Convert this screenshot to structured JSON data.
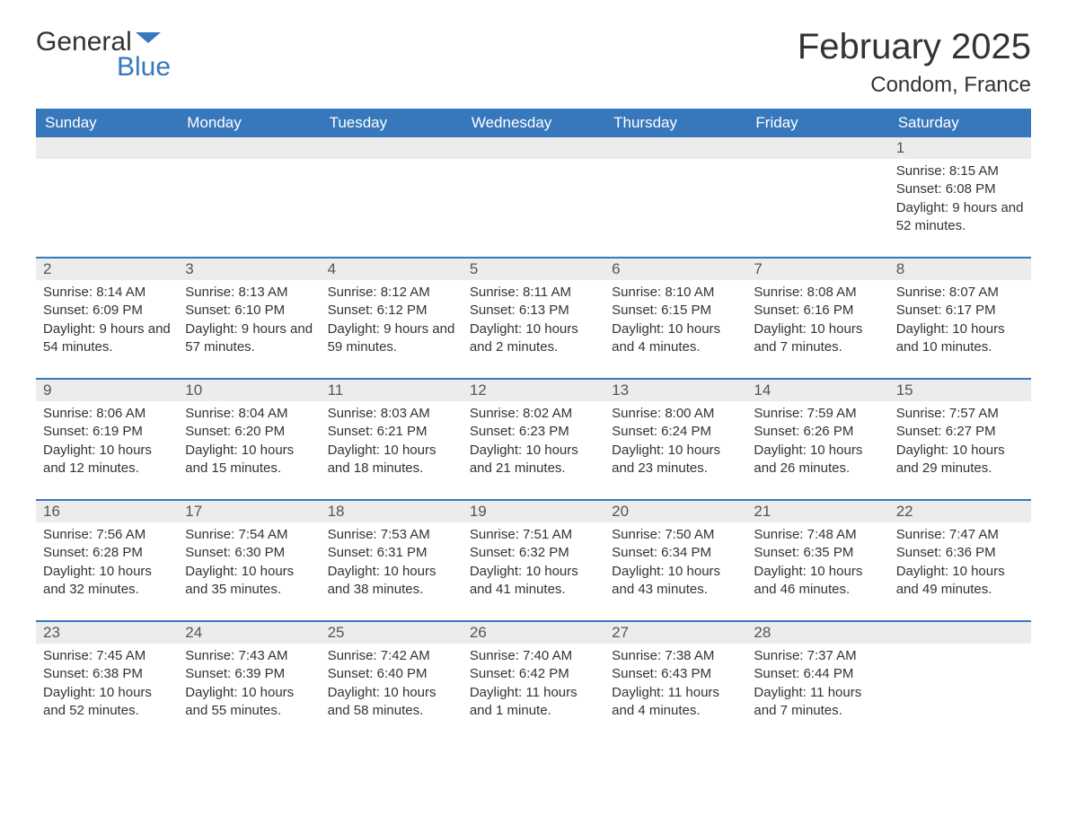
{
  "brand": {
    "part1": "General",
    "part2": "Blue",
    "logo_color": "#3778bd"
  },
  "title": "February 2025",
  "location": "Condom, France",
  "colors": {
    "header_bg": "#3778bd",
    "header_fg": "#ffffff",
    "daybar_bg": "#ececec",
    "text": "#333333",
    "week_border": "#3778bd"
  },
  "weekdays": [
    "Sunday",
    "Monday",
    "Tuesday",
    "Wednesday",
    "Thursday",
    "Friday",
    "Saturday"
  ],
  "sunrise_prefix": "Sunrise: ",
  "sunset_prefix": "Sunset: ",
  "daylight_prefix": "Daylight: ",
  "weeks": [
    [
      null,
      null,
      null,
      null,
      null,
      null,
      {
        "day": "1",
        "sunrise": "8:15 AM",
        "sunset": "6:08 PM",
        "daylight": "9 hours and 52 minutes."
      }
    ],
    [
      {
        "day": "2",
        "sunrise": "8:14 AM",
        "sunset": "6:09 PM",
        "daylight": "9 hours and 54 minutes."
      },
      {
        "day": "3",
        "sunrise": "8:13 AM",
        "sunset": "6:10 PM",
        "daylight": "9 hours and 57 minutes."
      },
      {
        "day": "4",
        "sunrise": "8:12 AM",
        "sunset": "6:12 PM",
        "daylight": "9 hours and 59 minutes."
      },
      {
        "day": "5",
        "sunrise": "8:11 AM",
        "sunset": "6:13 PM",
        "daylight": "10 hours and 2 minutes."
      },
      {
        "day": "6",
        "sunrise": "8:10 AM",
        "sunset": "6:15 PM",
        "daylight": "10 hours and 4 minutes."
      },
      {
        "day": "7",
        "sunrise": "8:08 AM",
        "sunset": "6:16 PM",
        "daylight": "10 hours and 7 minutes."
      },
      {
        "day": "8",
        "sunrise": "8:07 AM",
        "sunset": "6:17 PM",
        "daylight": "10 hours and 10 minutes."
      }
    ],
    [
      {
        "day": "9",
        "sunrise": "8:06 AM",
        "sunset": "6:19 PM",
        "daylight": "10 hours and 12 minutes."
      },
      {
        "day": "10",
        "sunrise": "8:04 AM",
        "sunset": "6:20 PM",
        "daylight": "10 hours and 15 minutes."
      },
      {
        "day": "11",
        "sunrise": "8:03 AM",
        "sunset": "6:21 PM",
        "daylight": "10 hours and 18 minutes."
      },
      {
        "day": "12",
        "sunrise": "8:02 AM",
        "sunset": "6:23 PM",
        "daylight": "10 hours and 21 minutes."
      },
      {
        "day": "13",
        "sunrise": "8:00 AM",
        "sunset": "6:24 PM",
        "daylight": "10 hours and 23 minutes."
      },
      {
        "day": "14",
        "sunrise": "7:59 AM",
        "sunset": "6:26 PM",
        "daylight": "10 hours and 26 minutes."
      },
      {
        "day": "15",
        "sunrise": "7:57 AM",
        "sunset": "6:27 PM",
        "daylight": "10 hours and 29 minutes."
      }
    ],
    [
      {
        "day": "16",
        "sunrise": "7:56 AM",
        "sunset": "6:28 PM",
        "daylight": "10 hours and 32 minutes."
      },
      {
        "day": "17",
        "sunrise": "7:54 AM",
        "sunset": "6:30 PM",
        "daylight": "10 hours and 35 minutes."
      },
      {
        "day": "18",
        "sunrise": "7:53 AM",
        "sunset": "6:31 PM",
        "daylight": "10 hours and 38 minutes."
      },
      {
        "day": "19",
        "sunrise": "7:51 AM",
        "sunset": "6:32 PM",
        "daylight": "10 hours and 41 minutes."
      },
      {
        "day": "20",
        "sunrise": "7:50 AM",
        "sunset": "6:34 PM",
        "daylight": "10 hours and 43 minutes."
      },
      {
        "day": "21",
        "sunrise": "7:48 AM",
        "sunset": "6:35 PM",
        "daylight": "10 hours and 46 minutes."
      },
      {
        "day": "22",
        "sunrise": "7:47 AM",
        "sunset": "6:36 PM",
        "daylight": "10 hours and 49 minutes."
      }
    ],
    [
      {
        "day": "23",
        "sunrise": "7:45 AM",
        "sunset": "6:38 PM",
        "daylight": "10 hours and 52 minutes."
      },
      {
        "day": "24",
        "sunrise": "7:43 AM",
        "sunset": "6:39 PM",
        "daylight": "10 hours and 55 minutes."
      },
      {
        "day": "25",
        "sunrise": "7:42 AM",
        "sunset": "6:40 PM",
        "daylight": "10 hours and 58 minutes."
      },
      {
        "day": "26",
        "sunrise": "7:40 AM",
        "sunset": "6:42 PM",
        "daylight": "11 hours and 1 minute."
      },
      {
        "day": "27",
        "sunrise": "7:38 AM",
        "sunset": "6:43 PM",
        "daylight": "11 hours and 4 minutes."
      },
      {
        "day": "28",
        "sunrise": "7:37 AM",
        "sunset": "6:44 PM",
        "daylight": "11 hours and 7 minutes."
      },
      null
    ]
  ]
}
